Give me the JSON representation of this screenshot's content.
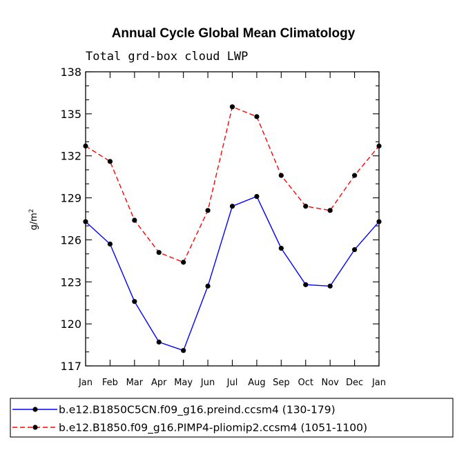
{
  "chart_data": {
    "type": "line",
    "title": "Annual Cycle Global Mean Climatology",
    "subtitle": "Total grd-box cloud LWP",
    "ylabel_base": "g/m",
    "ylabel_sup": "2",
    "categories": [
      "Jan",
      "Feb",
      "Mar",
      "Apr",
      "May",
      "Jun",
      "Jul",
      "Aug",
      "Sep",
      "Oct",
      "Nov",
      "Dec",
      "Jan"
    ],
    "ylim": [
      117,
      138
    ],
    "yticks": [
      "117",
      "120",
      "123",
      "126",
      "129",
      "132",
      "135",
      "138"
    ],
    "series": [
      {
        "name": "b.e12.B1850C5CN.f09_g16.preind.ccsm4 (130-179)",
        "color": "#0000ff",
        "dash": "solid",
        "values": [
          127.3,
          125.7,
          121.6,
          118.7,
          118.1,
          122.7,
          128.4,
          129.1,
          125.4,
          122.8,
          122.7,
          125.3,
          127.3
        ]
      },
      {
        "name": "b.e12.B1850.f09_g16.PIMP4-pliomip2.ccsm4 (1051-1100)",
        "color": "#ff0000",
        "dash": "dashed",
        "values": [
          132.7,
          131.6,
          127.4,
          125.1,
          124.4,
          128.1,
          135.5,
          134.8,
          130.6,
          128.4,
          128.1,
          130.6,
          132.7
        ]
      }
    ],
    "legend_position": "bottom"
  }
}
